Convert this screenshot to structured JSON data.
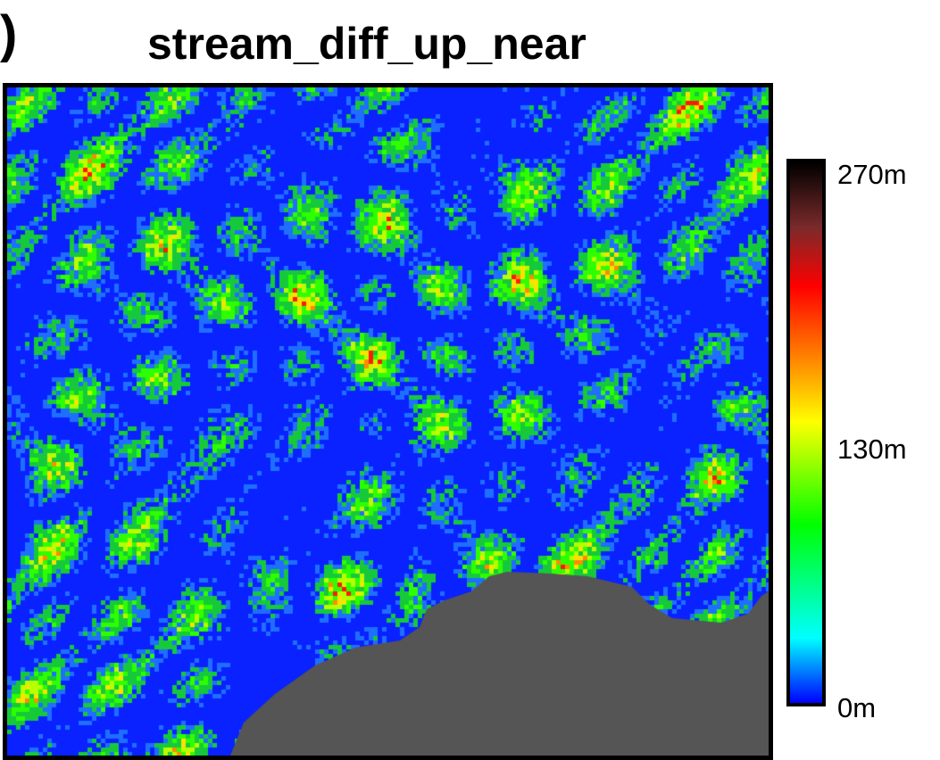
{
  "panel_label": ")",
  "title": "stream_diff_up_near",
  "colorbar": {
    "max_label": "270m",
    "mid_label": "130m",
    "min_label": "0m",
    "colors": [
      "#0000ff",
      "#00ffff",
      "#00ff00",
      "#ffff00",
      "#ffaa00",
      "#ff0000",
      "#7a2a2a",
      "#000000"
    ]
  },
  "map": {
    "nodata_color": "#555555",
    "background_color": "#0a22ff"
  }
}
